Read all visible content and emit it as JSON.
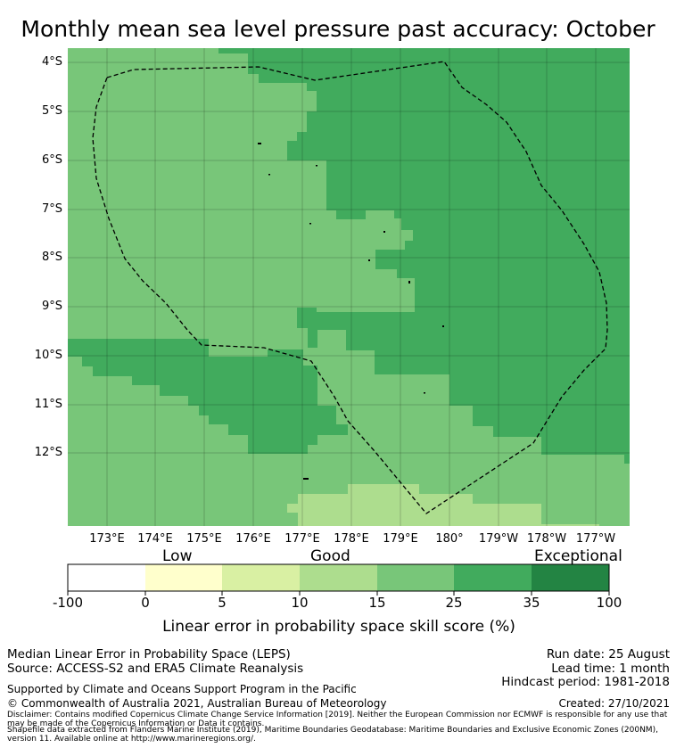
{
  "title": "Monthly mean sea level pressure past accuracy: October",
  "map": {
    "lat_labels": [
      "4°S",
      "5°S",
      "6°S",
      "7°S",
      "8°S",
      "9°S",
      "10°S",
      "11°S",
      "12°S"
    ],
    "lon_labels": [
      "173°E",
      "174°E",
      "175°E",
      "176°E",
      "177°E",
      "178°E",
      "179°E",
      "180°",
      "179°W",
      "178°W",
      "177°W"
    ],
    "extent": {
      "lon_min": 172.2,
      "lon_max": 183.7,
      "lat_min": -13.5,
      "lat_max": -3.7
    },
    "background_category": "15-25",
    "regions": [
      {
        "category": "25-35",
        "description": "north-east and east skill area"
      },
      {
        "category": "25-35",
        "description": "western band near 10-11°S"
      },
      {
        "category": "10-15",
        "description": "southern light band near 13°S"
      },
      {
        "category": "15-25",
        "description": "lower-right strip"
      }
    ],
    "outline": "Tuvalu EEZ (dashed)"
  },
  "colorbar": {
    "band_labels": [
      "Low",
      "Good",
      "Exceptional"
    ],
    "ticks": [
      "-100",
      "0",
      "5",
      "10",
      "15",
      "25",
      "35",
      "100"
    ],
    "colors": [
      "#ffffff",
      "#ffffcc",
      "#d9f0a3",
      "#addd8e",
      "#78c679",
      "#41ab5d",
      "#238443"
    ],
    "title": "Linear error in probability space skill score (%)"
  },
  "info_left": {
    "line1": "Median Linear Error in Probability Space (LEPS)",
    "line2": "Source: ACCESS-S2 and ERA5 Climate Reanalysis",
    "supported": "Supported by Climate and Oceans Support Program in the Pacific",
    "copyright": "© Commonwealth of Australia 2021, Australian Bureau of Meteorology"
  },
  "info_right": {
    "run_date": "Run date: 25 August",
    "lead_time": "Lead time: 1 month",
    "hindcast": "Hindcast period: 1981-2018",
    "created": "Created: 27/10/2021"
  },
  "disclaimer": "Disclaimer: Contains modified Copernicus Climate Change Service Information [2019]. Neither the European Commission nor ECMWF is responsible for any use that may be made of the Copernicus Information or Data it contains.",
  "shapefile": "Shapefile data extracted from Flanders Marine Institute (2019), Maritime Boundaries Geodatabase: Maritime Boundaries and Exclusive Economic Zones (200NM), version 11. Available online at http://www.marineregions.org/."
}
